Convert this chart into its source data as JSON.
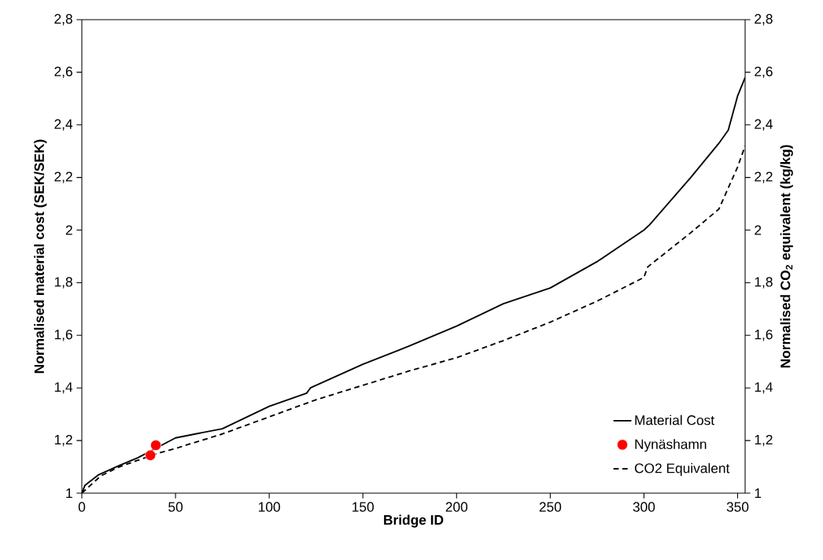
{
  "chart_data": {
    "type": "line",
    "xlabel": "Bridge ID",
    "ylabel": "Normalised material cost (SEK/SEK)",
    "y2label": "Normalised CO$_{2}$ equivalent (kg/kg)",
    "xlim": [
      0,
      354
    ],
    "xticks": [
      0,
      50,
      100,
      150,
      200,
      250,
      300,
      350
    ],
    "ylim": [
      1,
      2.8
    ],
    "yticks": [
      1,
      {
        "value": 1.2,
        "label": "1,2"
      },
      {
        "value": 1.4,
        "label": "1,4"
      },
      {
        "value": 1.6,
        "label": "1,6"
      },
      {
        "value": 1.8,
        "label": "1,8"
      },
      2,
      {
        "value": 2.2,
        "label": "2,2"
      },
      {
        "value": 2.4,
        "label": "2,4"
      },
      {
        "value": 2.6,
        "label": "2,6"
      },
      {
        "value": 2.8,
        "label": "2,8"
      }
    ],
    "y2lim": [
      1,
      2.8
    ],
    "y2ticks": [
      1,
      {
        "value": 1.2,
        "label": "1,2"
      },
      {
        "value": 1.4,
        "label": "1,4"
      },
      {
        "value": 1.6,
        "label": "1,6"
      },
      {
        "value": 1.8,
        "label": "1,8"
      },
      2,
      {
        "value": 2.2,
        "label": "2,2"
      },
      {
        "value": 2.4,
        "label": "2,4"
      },
      {
        "value": 2.6,
        "label": "2,6"
      },
      {
        "value": 2.8,
        "label": "2,8"
      }
    ],
    "legend": "bottom right",
    "series": [
      {
        "name": "Material Cost",
        "color": "#000000",
        "line_style": "solid",
        "x": [
          0,
          1.7,
          9,
          20,
          30,
          40,
          50,
          75,
          100,
          120,
          122,
          150,
          175,
          200,
          225,
          250,
          275,
          300,
          303,
          325,
          340,
          345,
          350,
          354
        ],
        "values": [
          1.0,
          1.03,
          1.07,
          1.105,
          1.135,
          null,
          1.21,
          1.245,
          1.33,
          1.38,
          1.4,
          1.49,
          1.56,
          1.635,
          1.72,
          1.78,
          1.88,
          2.0,
          2.02,
          2.2,
          2.33,
          2.38,
          2.51,
          2.58
        ]
      },
      {
        "name": "Nynäshamn",
        "type": "scatter",
        "color": "#ff0000",
        "x": [
          36.6,
          39.5
        ],
        "values": [
          1.144,
          1.182
        ]
      },
      {
        "name": "CO2 Equivalent",
        "color": "#000000",
        "line_style": "dashed",
        "x": [
          0,
          10,
          20,
          30,
          40,
          50,
          75,
          100,
          125,
          150,
          175,
          200,
          225,
          250,
          275,
          300,
          302,
          325,
          340,
          350,
          354
        ],
        "values": [
          1.0,
          1.065,
          1.1,
          1.125,
          1.15,
          1.17,
          1.225,
          1.29,
          1.355,
          1.41,
          1.465,
          1.515,
          1.58,
          1.65,
          1.73,
          1.82,
          1.86,
          1.99,
          2.08,
          2.24,
          2.32
        ]
      }
    ]
  }
}
